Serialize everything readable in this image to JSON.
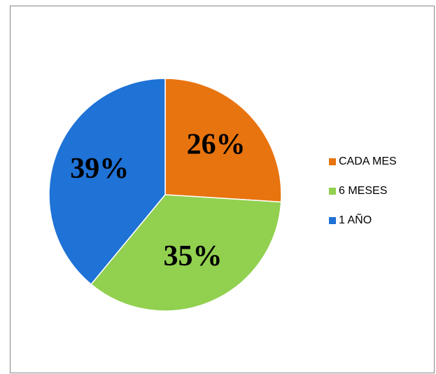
{
  "chart_data": {
    "type": "pie",
    "categories": [
      "CADA MES",
      "6 MESES",
      "1 AÑO"
    ],
    "values": [
      26,
      35,
      39
    ],
    "value_labels": [
      "26%",
      "35%",
      "39%"
    ],
    "colors": [
      "#e8740f",
      "#92d050",
      "#1f72d6"
    ],
    "legend": "right"
  }
}
